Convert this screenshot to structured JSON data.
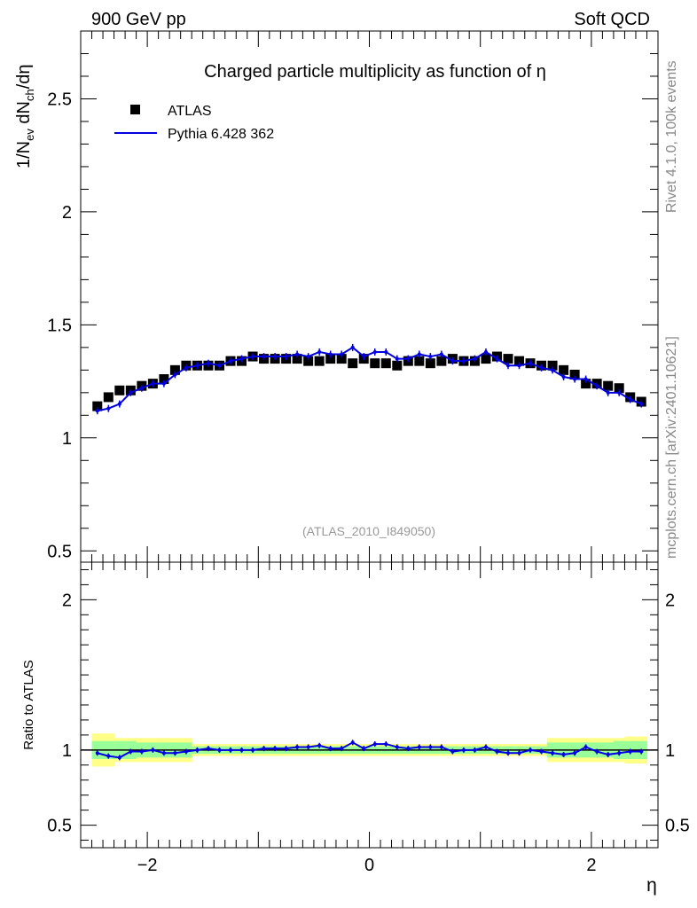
{
  "header": {
    "left": "900 GeV pp",
    "right": "Soft QCD",
    "side_top": "Rivet 4.1.0,  100k events",
    "side_bottom": "mcplots.cern.ch [arXiv:2401.10621]",
    "watermark": "(ATLAS_2010_I849050)"
  },
  "chart_data": [
    {
      "type": "scatter",
      "title": "Charged particle multiplicity as function of η",
      "ylabel": "1/N_ev dN_ch/dη",
      "ylabel_parts": {
        "pre": "1/N",
        "sub1": "ev",
        "mid": " dN",
        "sub2": "ch",
        "post": "/dη"
      },
      "xlim": [
        -2.6,
        2.6
      ],
      "ylim": [
        0.45,
        2.8
      ],
      "yticks": [
        0.5,
        1,
        1.5,
        2,
        2.5
      ],
      "ytick_labels": [
        "0.5",
        "1",
        "1.5",
        "2",
        "2.5"
      ],
      "legend": [
        {
          "name": "ATLAS",
          "style": "black-square-markers"
        },
        {
          "name": "Pythia 6.428 362",
          "style": "blue-line"
        }
      ],
      "x": [
        -2.45,
        -2.35,
        -2.25,
        -2.15,
        -2.05,
        -1.95,
        -1.85,
        -1.75,
        -1.65,
        -1.55,
        -1.45,
        -1.35,
        -1.25,
        -1.15,
        -1.05,
        -0.95,
        -0.85,
        -0.75,
        -0.65,
        -0.55,
        -0.45,
        -0.35,
        -0.25,
        -0.15,
        -0.05,
        0.05,
        0.15,
        0.25,
        0.35,
        0.45,
        0.55,
        0.65,
        0.75,
        0.85,
        0.95,
        1.05,
        1.15,
        1.25,
        1.35,
        1.45,
        1.55,
        1.65,
        1.75,
        1.85,
        1.95,
        2.05,
        2.15,
        2.25,
        2.35,
        2.45
      ],
      "series": [
        {
          "name": "ATLAS",
          "color": "#000000",
          "values": [
            1.14,
            1.18,
            1.21,
            1.21,
            1.23,
            1.24,
            1.26,
            1.3,
            1.32,
            1.32,
            1.32,
            1.32,
            1.34,
            1.34,
            1.36,
            1.35,
            1.35,
            1.35,
            1.35,
            1.34,
            1.34,
            1.35,
            1.35,
            1.33,
            1.35,
            1.33,
            1.33,
            1.32,
            1.34,
            1.34,
            1.33,
            1.34,
            1.35,
            1.34,
            1.34,
            1.35,
            1.36,
            1.35,
            1.34,
            1.33,
            1.32,
            1.32,
            1.3,
            1.28,
            1.24,
            1.24,
            1.23,
            1.22,
            1.18,
            1.16
          ]
        },
        {
          "name": "Pythia 6.428 362",
          "color": "#0000e0",
          "values": [
            1.12,
            1.13,
            1.15,
            1.2,
            1.22,
            1.24,
            1.24,
            1.28,
            1.31,
            1.32,
            1.33,
            1.32,
            1.34,
            1.35,
            1.36,
            1.36,
            1.36,
            1.36,
            1.37,
            1.36,
            1.38,
            1.37,
            1.37,
            1.4,
            1.36,
            1.38,
            1.38,
            1.35,
            1.35,
            1.37,
            1.36,
            1.37,
            1.34,
            1.34,
            1.35,
            1.38,
            1.35,
            1.32,
            1.32,
            1.33,
            1.31,
            1.3,
            1.27,
            1.26,
            1.26,
            1.23,
            1.2,
            1.2,
            1.17,
            1.15
          ]
        }
      ]
    },
    {
      "type": "line",
      "ylabel": "Ratio to ATLAS",
      "xlabel": "η",
      "xlim": [
        -2.6,
        2.6
      ],
      "ylim": [
        0.35,
        2.25
      ],
      "xticks": [
        -2,
        0,
        2
      ],
      "xtick_labels": [
        "−2",
        "0",
        "2"
      ],
      "yticks": [
        0.5,
        1,
        2
      ],
      "ytick_labels": [
        "0.5",
        "1",
        "2"
      ],
      "reference_line": 1,
      "band_inner_color": "#99ff99",
      "band_outer_color": "#ffff88",
      "band_inner_halfwidth": [
        0.06,
        0.06,
        0.06,
        0.06,
        0.05,
        0.05,
        0.05,
        0.05,
        0.05,
        0.025,
        0.025,
        0.025,
        0.025,
        0.025,
        0.025,
        0.025,
        0.025,
        0.025,
        0.025,
        0.025,
        0.025,
        0.025,
        0.025,
        0.025,
        0.025,
        0.025,
        0.025,
        0.025,
        0.025,
        0.025,
        0.025,
        0.025,
        0.025,
        0.025,
        0.025,
        0.025,
        0.025,
        0.025,
        0.025,
        0.025,
        0.025,
        0.05,
        0.05,
        0.05,
        0.05,
        0.05,
        0.05,
        0.06,
        0.06,
        0.06
      ],
      "band_outer_halfwidth": [
        0.11,
        0.11,
        0.08,
        0.08,
        0.08,
        0.08,
        0.08,
        0.08,
        0.08,
        0.04,
        0.04,
        0.04,
        0.04,
        0.04,
        0.04,
        0.04,
        0.04,
        0.04,
        0.04,
        0.04,
        0.04,
        0.04,
        0.04,
        0.04,
        0.04,
        0.04,
        0.04,
        0.04,
        0.04,
        0.04,
        0.04,
        0.04,
        0.04,
        0.04,
        0.04,
        0.04,
        0.04,
        0.04,
        0.04,
        0.04,
        0.04,
        0.08,
        0.08,
        0.08,
        0.08,
        0.08,
        0.08,
        0.08,
        0.09,
        0.09
      ],
      "series": [
        {
          "name": "Pythia 6.428 362 / ATLAS",
          "color": "#0000e0",
          "values": [
            0.98,
            0.96,
            0.95,
            0.99,
            0.99,
            1.0,
            0.98,
            0.98,
            0.99,
            1.0,
            1.01,
            1.0,
            1.0,
            1.0,
            1.0,
            1.01,
            1.01,
            1.01,
            1.02,
            1.02,
            1.03,
            1.01,
            1.01,
            1.05,
            1.01,
            1.04,
            1.04,
            1.02,
            1.01,
            1.02,
            1.02,
            1.02,
            0.99,
            1.0,
            1.0,
            1.02,
            0.99,
            0.98,
            0.98,
            1.0,
            0.99,
            0.98,
            0.97,
            0.98,
            1.02,
            0.99,
            0.97,
            0.98,
            0.99,
            0.99
          ]
        }
      ]
    }
  ]
}
